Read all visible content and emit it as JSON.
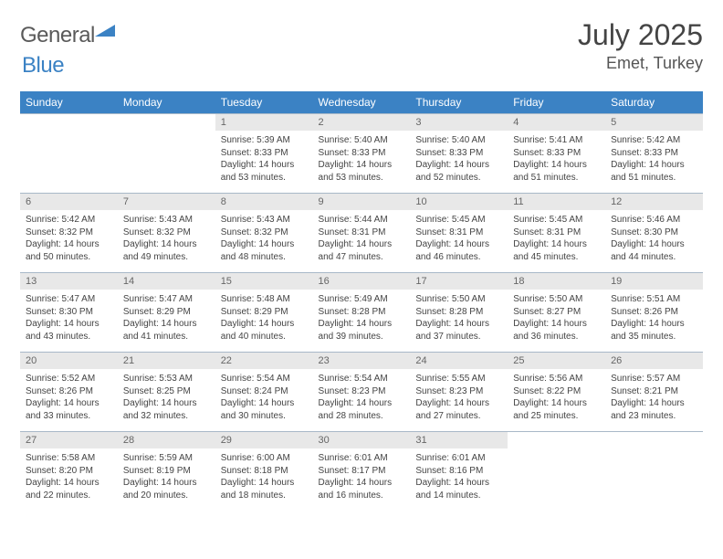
{
  "brand": {
    "part1": "General",
    "part2": "Blue"
  },
  "title": "July 2025",
  "location": "Emet, Turkey",
  "colors": {
    "header_bg": "#3b82c4",
    "daynum_bg": "#e8e8e8",
    "border": "#a8b8c8",
    "text": "#444444"
  },
  "day_names": [
    "Sunday",
    "Monday",
    "Tuesday",
    "Wednesday",
    "Thursday",
    "Friday",
    "Saturday"
  ],
  "weeks": [
    {
      "nums": [
        "",
        "",
        "1",
        "2",
        "3",
        "4",
        "5"
      ],
      "cells": [
        null,
        null,
        {
          "sr": "Sunrise: 5:39 AM",
          "ss": "Sunset: 8:33 PM",
          "d1": "Daylight: 14 hours",
          "d2": "and 53 minutes."
        },
        {
          "sr": "Sunrise: 5:40 AM",
          "ss": "Sunset: 8:33 PM",
          "d1": "Daylight: 14 hours",
          "d2": "and 53 minutes."
        },
        {
          "sr": "Sunrise: 5:40 AM",
          "ss": "Sunset: 8:33 PM",
          "d1": "Daylight: 14 hours",
          "d2": "and 52 minutes."
        },
        {
          "sr": "Sunrise: 5:41 AM",
          "ss": "Sunset: 8:33 PM",
          "d1": "Daylight: 14 hours",
          "d2": "and 51 minutes."
        },
        {
          "sr": "Sunrise: 5:42 AM",
          "ss": "Sunset: 8:33 PM",
          "d1": "Daylight: 14 hours",
          "d2": "and 51 minutes."
        }
      ]
    },
    {
      "nums": [
        "6",
        "7",
        "8",
        "9",
        "10",
        "11",
        "12"
      ],
      "cells": [
        {
          "sr": "Sunrise: 5:42 AM",
          "ss": "Sunset: 8:32 PM",
          "d1": "Daylight: 14 hours",
          "d2": "and 50 minutes."
        },
        {
          "sr": "Sunrise: 5:43 AM",
          "ss": "Sunset: 8:32 PM",
          "d1": "Daylight: 14 hours",
          "d2": "and 49 minutes."
        },
        {
          "sr": "Sunrise: 5:43 AM",
          "ss": "Sunset: 8:32 PM",
          "d1": "Daylight: 14 hours",
          "d2": "and 48 minutes."
        },
        {
          "sr": "Sunrise: 5:44 AM",
          "ss": "Sunset: 8:31 PM",
          "d1": "Daylight: 14 hours",
          "d2": "and 47 minutes."
        },
        {
          "sr": "Sunrise: 5:45 AM",
          "ss": "Sunset: 8:31 PM",
          "d1": "Daylight: 14 hours",
          "d2": "and 46 minutes."
        },
        {
          "sr": "Sunrise: 5:45 AM",
          "ss": "Sunset: 8:31 PM",
          "d1": "Daylight: 14 hours",
          "d2": "and 45 minutes."
        },
        {
          "sr": "Sunrise: 5:46 AM",
          "ss": "Sunset: 8:30 PM",
          "d1": "Daylight: 14 hours",
          "d2": "and 44 minutes."
        }
      ]
    },
    {
      "nums": [
        "13",
        "14",
        "15",
        "16",
        "17",
        "18",
        "19"
      ],
      "cells": [
        {
          "sr": "Sunrise: 5:47 AM",
          "ss": "Sunset: 8:30 PM",
          "d1": "Daylight: 14 hours",
          "d2": "and 43 minutes."
        },
        {
          "sr": "Sunrise: 5:47 AM",
          "ss": "Sunset: 8:29 PM",
          "d1": "Daylight: 14 hours",
          "d2": "and 41 minutes."
        },
        {
          "sr": "Sunrise: 5:48 AM",
          "ss": "Sunset: 8:29 PM",
          "d1": "Daylight: 14 hours",
          "d2": "and 40 minutes."
        },
        {
          "sr": "Sunrise: 5:49 AM",
          "ss": "Sunset: 8:28 PM",
          "d1": "Daylight: 14 hours",
          "d2": "and 39 minutes."
        },
        {
          "sr": "Sunrise: 5:50 AM",
          "ss": "Sunset: 8:28 PM",
          "d1": "Daylight: 14 hours",
          "d2": "and 37 minutes."
        },
        {
          "sr": "Sunrise: 5:50 AM",
          "ss": "Sunset: 8:27 PM",
          "d1": "Daylight: 14 hours",
          "d2": "and 36 minutes."
        },
        {
          "sr": "Sunrise: 5:51 AM",
          "ss": "Sunset: 8:26 PM",
          "d1": "Daylight: 14 hours",
          "d2": "and 35 minutes."
        }
      ]
    },
    {
      "nums": [
        "20",
        "21",
        "22",
        "23",
        "24",
        "25",
        "26"
      ],
      "cells": [
        {
          "sr": "Sunrise: 5:52 AM",
          "ss": "Sunset: 8:26 PM",
          "d1": "Daylight: 14 hours",
          "d2": "and 33 minutes."
        },
        {
          "sr": "Sunrise: 5:53 AM",
          "ss": "Sunset: 8:25 PM",
          "d1": "Daylight: 14 hours",
          "d2": "and 32 minutes."
        },
        {
          "sr": "Sunrise: 5:54 AM",
          "ss": "Sunset: 8:24 PM",
          "d1": "Daylight: 14 hours",
          "d2": "and 30 minutes."
        },
        {
          "sr": "Sunrise: 5:54 AM",
          "ss": "Sunset: 8:23 PM",
          "d1": "Daylight: 14 hours",
          "d2": "and 28 minutes."
        },
        {
          "sr": "Sunrise: 5:55 AM",
          "ss": "Sunset: 8:23 PM",
          "d1": "Daylight: 14 hours",
          "d2": "and 27 minutes."
        },
        {
          "sr": "Sunrise: 5:56 AM",
          "ss": "Sunset: 8:22 PM",
          "d1": "Daylight: 14 hours",
          "d2": "and 25 minutes."
        },
        {
          "sr": "Sunrise: 5:57 AM",
          "ss": "Sunset: 8:21 PM",
          "d1": "Daylight: 14 hours",
          "d2": "and 23 minutes."
        }
      ]
    },
    {
      "nums": [
        "27",
        "28",
        "29",
        "30",
        "31",
        "",
        ""
      ],
      "cells": [
        {
          "sr": "Sunrise: 5:58 AM",
          "ss": "Sunset: 8:20 PM",
          "d1": "Daylight: 14 hours",
          "d2": "and 22 minutes."
        },
        {
          "sr": "Sunrise: 5:59 AM",
          "ss": "Sunset: 8:19 PM",
          "d1": "Daylight: 14 hours",
          "d2": "and 20 minutes."
        },
        {
          "sr": "Sunrise: 6:00 AM",
          "ss": "Sunset: 8:18 PM",
          "d1": "Daylight: 14 hours",
          "d2": "and 18 minutes."
        },
        {
          "sr": "Sunrise: 6:01 AM",
          "ss": "Sunset: 8:17 PM",
          "d1": "Daylight: 14 hours",
          "d2": "and 16 minutes."
        },
        {
          "sr": "Sunrise: 6:01 AM",
          "ss": "Sunset: 8:16 PM",
          "d1": "Daylight: 14 hours",
          "d2": "and 14 minutes."
        },
        null,
        null
      ]
    }
  ]
}
